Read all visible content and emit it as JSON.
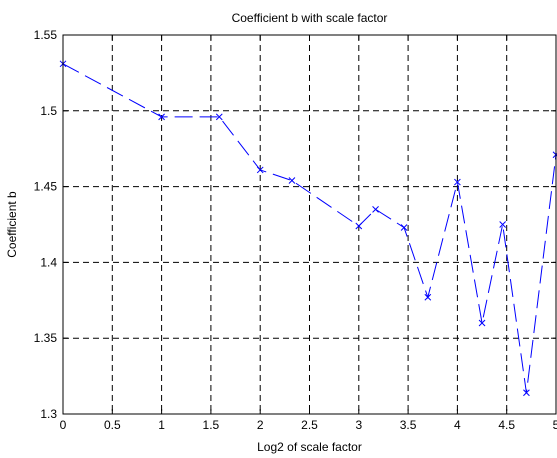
{
  "chart_data": {
    "type": "line",
    "title": "Coefficient b with scale factor",
    "xlabel": "Log2 of scale factor",
    "ylabel": "Coefficient b",
    "xlim": [
      0,
      5
    ],
    "ylim": [
      1.3,
      1.55
    ],
    "xticks": [
      0,
      0.5,
      1,
      1.5,
      2,
      2.5,
      3,
      3.5,
      4,
      4.5,
      5
    ],
    "xtick_labels": [
      "0",
      "0.5",
      "1",
      "1.5",
      "2",
      "2.5",
      "3",
      "3.5",
      "4",
      "4.5",
      "5"
    ],
    "yticks": [
      1.3,
      1.35,
      1.4,
      1.45,
      1.5,
      1.55
    ],
    "ytick_labels": [
      "1.3",
      "1.35",
      "1.4",
      "1.45",
      "1.5",
      "1.55"
    ],
    "grid": true,
    "series": [
      {
        "color": "#0000ff",
        "line_style": "dashed",
        "marker": "x",
        "x": [
          0,
          1,
          1.585,
          2,
          2.322,
          3,
          3.17,
          3.459,
          3.7,
          4,
          4.25,
          4.459,
          4.7,
          5
        ],
        "y": [
          1.531,
          1.496,
          1.496,
          1.461,
          1.454,
          1.424,
          1.435,
          1.423,
          1.377,
          1.453,
          1.36,
          1.425,
          1.314,
          1.471
        ]
      }
    ]
  }
}
